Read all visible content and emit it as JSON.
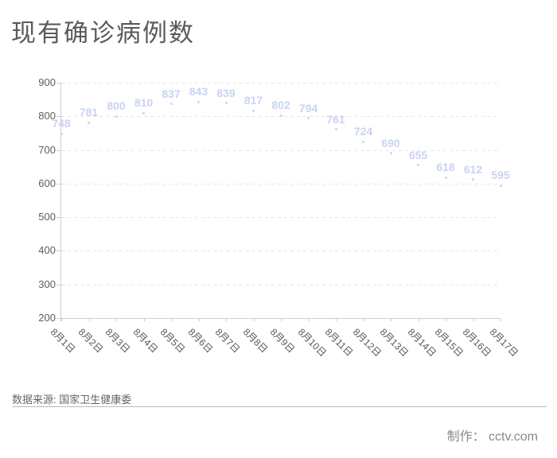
{
  "page": {
    "title": "现有确诊病例数",
    "source_note": "数据来源: 国家卫生健康委",
    "credit": "制作： cctv.com"
  },
  "chart_data": {
    "type": "scatter",
    "title": "现有确诊病例数",
    "categories": [
      "8月1日",
      "8月2日",
      "8月3日",
      "8月4日",
      "8月5日",
      "8月6日",
      "8月7日",
      "8月8日",
      "8月9日",
      "8月10日",
      "8月11日",
      "8月12日",
      "8月13日",
      "8月14日",
      "8月15日",
      "8月16日",
      "8月17日"
    ],
    "series": [
      {
        "name": "现有确诊病例数",
        "values": [
          748,
          781,
          800,
          810,
          837,
          843,
          839,
          817,
          802,
          794,
          761,
          724,
          690,
          655,
          618,
          612,
          595
        ]
      }
    ],
    "xlabel": "",
    "ylabel": "",
    "ylim": [
      200,
      900
    ],
    "y_ticks": [
      200,
      300,
      400,
      500,
      600,
      700,
      800,
      900
    ],
    "grid": "horizontal-dashed",
    "legend": "none",
    "colors": {
      "point": "#c9cfe8",
      "point_label": "#cad3f1",
      "axis": "#cccccc",
      "grid": "#e4e6ea",
      "axis_text": "#5e5e5e"
    }
  }
}
